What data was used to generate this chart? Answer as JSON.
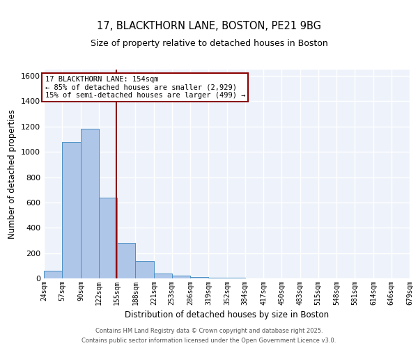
{
  "title_line1": "17, BLACKTHORN LANE, BOSTON, PE21 9BG",
  "title_line2": "Size of property relative to detached houses in Boston",
  "xlabel": "Distribution of detached houses by size in Boston",
  "ylabel": "Number of detached properties",
  "bin_edges": [
    24,
    57,
    90,
    122,
    155,
    188,
    221,
    253,
    286,
    319,
    352,
    384,
    417,
    450,
    483,
    515,
    548,
    581,
    614,
    646,
    679
  ],
  "bar_heights": [
    60,
    1080,
    1180,
    640,
    280,
    135,
    40,
    20,
    10,
    5,
    3,
    2,
    1,
    1,
    0,
    0,
    0,
    0,
    0,
    0
  ],
  "bar_color": "#aec6e8",
  "bar_edge_color": "#4a90c4",
  "property_size": 154,
  "vline_color": "#8B0000",
  "annotation_text": "17 BLACKTHORN LANE: 154sqm\n← 85% of detached houses are smaller (2,929)\n15% of semi-detached houses are larger (499) →",
  "annotation_box_color": "#8B0000",
  "annotation_text_color": "black",
  "annotation_bg_color": "white",
  "ylim": [
    0,
    1650
  ],
  "yticks": [
    0,
    200,
    400,
    600,
    800,
    1000,
    1200,
    1400,
    1600
  ],
  "background_color": "#eef3fb",
  "grid_color": "white",
  "footer_line1": "Contains HM Land Registry data © Crown copyright and database right 2025.",
  "footer_line2": "Contains public sector information licensed under the Open Government Licence v3.0."
}
